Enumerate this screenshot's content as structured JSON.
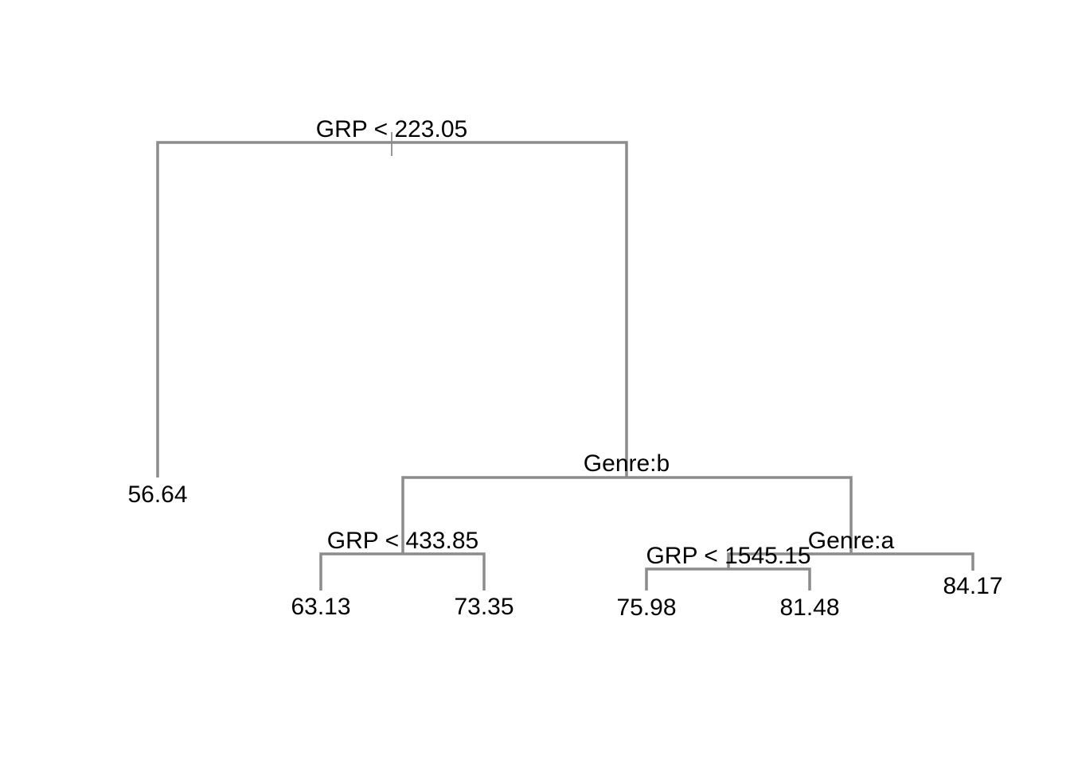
{
  "tree": {
    "splits": [
      {
        "id": "root",
        "label": "GRP < 223.05"
      },
      {
        "id": "genre-b",
        "label": "Genre:b"
      },
      {
        "id": "grp-433",
        "label": "GRP < 433.85"
      },
      {
        "id": "genre-a",
        "label": "Genre:a"
      },
      {
        "id": "grp-1545",
        "label": "GRP < 1545.15"
      }
    ],
    "leaves": [
      {
        "id": "leaf-1",
        "value": "56.64"
      },
      {
        "id": "leaf-2",
        "value": "63.13"
      },
      {
        "id": "leaf-3",
        "value": "73.35"
      },
      {
        "id": "leaf-4",
        "value": "75.98"
      },
      {
        "id": "leaf-5",
        "value": "81.48"
      },
      {
        "id": "leaf-6",
        "value": "84.17"
      }
    ]
  },
  "colors": {
    "edge": "#8c8c8c",
    "text": "#000000"
  }
}
